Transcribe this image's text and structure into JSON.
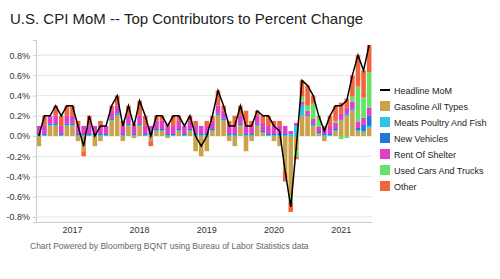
{
  "chart_data": {
    "type": "bar",
    "title": "U.S. CPI MoM -- Top Contributors to Percent Change",
    "source": "Chart Powered by Bloomberg BQNT using Bureau of Labor Statistics data",
    "stacked": true,
    "grid": true,
    "legend": "right",
    "categories": [
      null,
      null,
      null,
      null,
      null,
      null,
      "2017",
      null,
      null,
      null,
      null,
      null,
      null,
      null,
      null,
      null,
      null,
      null,
      "2018",
      null,
      null,
      null,
      null,
      null,
      null,
      null,
      null,
      null,
      null,
      null,
      "2019",
      null,
      null,
      null,
      null,
      null,
      null,
      null,
      null,
      null,
      null,
      null,
      "2020",
      null,
      null,
      null,
      null,
      null,
      null,
      null,
      null,
      null,
      null,
      null,
      "2021",
      null,
      null,
      null,
      null,
      null
    ],
    "ylim": [
      -0.85,
      0.95
    ],
    "yticks": [
      {
        "value": -0.8,
        "label": "-0.8%"
      },
      {
        "value": -0.6,
        "label": "-0.6%"
      },
      {
        "value": -0.4,
        "label": "-0.4%"
      },
      {
        "value": -0.2,
        "label": "-0.2%"
      },
      {
        "value": 0,
        "label": "0.0%"
      },
      {
        "value": 0.2,
        "label": "0.2%"
      },
      {
        "value": 0.4,
        "label": "0.4%"
      },
      {
        "value": 0.6,
        "label": "0.6%"
      },
      {
        "value": 0.8,
        "label": "0.8%"
      }
    ],
    "series": [
      {
        "name": "Headline MoM",
        "type": "line",
        "color": "#000000",
        "values": [
          0.0,
          0.2,
          0.2,
          0.3,
          0.2,
          0.3,
          0.3,
          0.1,
          -0.1,
          0.2,
          0.0,
          0.1,
          0.1,
          0.3,
          0.4,
          0.1,
          0.3,
          0.1,
          0.35,
          0.2,
          0.0,
          0.2,
          0.2,
          0.1,
          0.2,
          0.2,
          0.1,
          0.2,
          0.0,
          -0.1,
          0.0,
          0.2,
          0.45,
          0.3,
          0.1,
          0.1,
          0.3,
          0.1,
          0.1,
          0.25,
          0.2,
          0.2,
          0.1,
          0.05,
          -0.35,
          -0.7,
          -0.1,
          0.55,
          0.5,
          0.4,
          0.2,
          0.05,
          0.2,
          0.3,
          0.3,
          0.35,
          0.6,
          0.8,
          0.65,
          0.9
        ]
      },
      {
        "name": "Gasoline All Types",
        "type": "bar",
        "color": "#c9a24a",
        "values": [
          -0.1,
          0.0,
          0.1,
          0.1,
          0.0,
          0.1,
          0.1,
          -0.05,
          -0.15,
          0.0,
          -0.1,
          -0.05,
          0.0,
          0.15,
          0.2,
          -0.05,
          0.1,
          -0.02,
          0.1,
          0.0,
          -0.05,
          0.05,
          0.05,
          -0.02,
          0.0,
          0.05,
          0.0,
          0.05,
          -0.15,
          -0.2,
          -0.15,
          0.05,
          0.2,
          0.15,
          -0.05,
          -0.1,
          0.1,
          -0.15,
          -0.05,
          0.1,
          0.03,
          0.0,
          -0.05,
          -0.1,
          -0.35,
          -0.6,
          -0.15,
          0.2,
          0.2,
          0.1,
          0.02,
          -0.05,
          0.0,
          0.05,
          0.15,
          0.2,
          0.25,
          0.05,
          0.03,
          0.08
        ]
      },
      {
        "name": "Meats Poultry And Fish",
        "type": "bar",
        "color": "#2ec4e6",
        "values": [
          0.01,
          0.01,
          0.01,
          0.01,
          0.01,
          0.01,
          0.01,
          0.01,
          0.01,
          0.01,
          0.01,
          0.01,
          0.01,
          0.01,
          0.01,
          0.01,
          0.01,
          0.01,
          0.01,
          0.01,
          0.01,
          0.01,
          0.01,
          0.01,
          0.01,
          0.01,
          0.01,
          0.01,
          0.01,
          0.01,
          0.01,
          0.01,
          0.01,
          0.01,
          0.01,
          0.01,
          0.01,
          0.01,
          0.01,
          0.01,
          0.01,
          0.01,
          0.01,
          0.01,
          0.01,
          0.02,
          0.1,
          0.1,
          0.0,
          0.01,
          0.01,
          0.01,
          0.01,
          0.01,
          0.01,
          0.01,
          0.01,
          0.01,
          0.02,
          0.02
        ]
      },
      {
        "name": "New Vehicles",
        "type": "bar",
        "color": "#1f78d1",
        "values": [
          0.01,
          0.01,
          0.01,
          0.01,
          0.01,
          0.01,
          0.01,
          0.01,
          0.01,
          0.01,
          0.01,
          0.01,
          0.01,
          0.01,
          0.01,
          0.01,
          0.01,
          0.01,
          0.01,
          0.01,
          0.01,
          0.01,
          0.01,
          0.01,
          0.01,
          0.01,
          0.01,
          0.01,
          0.01,
          0.01,
          0.01,
          0.01,
          0.01,
          0.01,
          0.01,
          0.01,
          0.01,
          0.01,
          0.01,
          0.01,
          0.01,
          0.01,
          0.01,
          0.01,
          0.01,
          0.0,
          0.0,
          0.01,
          0.01,
          0.01,
          0.01,
          0.01,
          0.01,
          0.01,
          0.0,
          0.01,
          0.01,
          0.02,
          0.06,
          0.1
        ]
      },
      {
        "name": "Rent Of Shelter",
        "type": "bar",
        "color": "#e040c8",
        "values": [
          0.08,
          0.08,
          0.08,
          0.08,
          0.08,
          0.08,
          0.08,
          0.08,
          0.08,
          0.08,
          0.08,
          0.08,
          0.08,
          0.08,
          0.08,
          0.08,
          0.08,
          0.08,
          0.08,
          0.08,
          0.08,
          0.08,
          0.08,
          0.08,
          0.08,
          0.08,
          0.08,
          0.08,
          0.08,
          0.08,
          0.08,
          0.08,
          0.08,
          0.08,
          0.08,
          0.08,
          0.08,
          0.08,
          0.08,
          0.08,
          0.08,
          0.08,
          0.08,
          0.08,
          0.08,
          0.03,
          0.03,
          0.03,
          0.04,
          0.05,
          0.05,
          0.06,
          0.08,
          0.06,
          0.06,
          0.06,
          0.07,
          0.06,
          0.07,
          0.08
        ]
      },
      {
        "name": "Used Cars And Trucks",
        "type": "bar",
        "color": "#66e066",
        "values": [
          0.0,
          0.0,
          0.0,
          0.0,
          0.0,
          0.0,
          0.0,
          0.0,
          0.0,
          0.0,
          0.0,
          0.0,
          0.0,
          0.0,
          0.0,
          0.0,
          0.0,
          0.0,
          0.0,
          0.0,
          0.0,
          0.0,
          0.0,
          0.0,
          0.0,
          0.0,
          0.0,
          0.0,
          0.0,
          0.0,
          0.0,
          0.0,
          0.0,
          0.0,
          0.0,
          0.0,
          0.0,
          0.0,
          0.0,
          0.0,
          0.0,
          0.0,
          0.0,
          0.0,
          0.0,
          -0.05,
          -0.05,
          0.05,
          0.05,
          0.15,
          0.1,
          0.0,
          0.0,
          0.02,
          -0.03,
          -0.02,
          0.05,
          0.35,
          0.2,
          0.35
        ]
      },
      {
        "name": "Other",
        "type": "bar",
        "color": "#f2643c",
        "values": [
          0.0,
          0.1,
          0.0,
          0.1,
          0.1,
          0.1,
          0.1,
          0.05,
          -0.05,
          0.1,
          0.0,
          0.05,
          0.0,
          0.05,
          0.1,
          0.05,
          0.1,
          0.02,
          0.15,
          0.1,
          -0.05,
          0.05,
          0.05,
          0.02,
          0.1,
          0.05,
          0.0,
          0.05,
          0.05,
          0.0,
          0.05,
          0.05,
          0.15,
          0.05,
          0.05,
          0.1,
          0.1,
          0.15,
          0.05,
          0.05,
          0.07,
          0.1,
          0.05,
          0.05,
          -0.1,
          -0.1,
          -0.03,
          0.16,
          0.2,
          0.08,
          0.01,
          0.02,
          0.1,
          0.15,
          0.11,
          0.09,
          0.21,
          0.31,
          0.27,
          0.27
        ]
      }
    ]
  }
}
